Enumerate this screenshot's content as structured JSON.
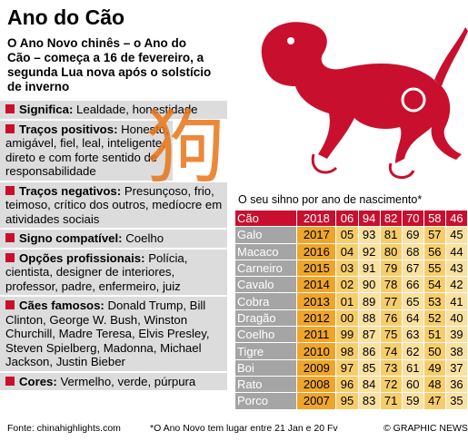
{
  "header": {
    "title": "Ano do Cão",
    "subtitle": "O Ano Novo chinês – o Ano do Cão – começa a 16 de fevereiro, a segunda Lua nova após o solstício de inverno",
    "character": "狗"
  },
  "sections": [
    {
      "label": "Significa:",
      "text": "Lealdade, honestidade"
    },
    {
      "label": "Traços positivos:",
      "text": "Honesto, amigável, fiel, leal, inteligente, direto e com forte sentido de responsabilidade"
    },
    {
      "label": "Traços negativos:",
      "text": "Presunçoso, frio, teimoso, crítico dos outros, medíocre em atividades sociais"
    },
    {
      "label": "Signo compatível:",
      "text": "Coelho"
    },
    {
      "label": "Opções profissionais:",
      "text": "Polícia, cientista, designer de interiores, professor, padre, enfermeiro, juiz"
    },
    {
      "label": "Cães famosos:",
      "text": "Donald Trump, Bill Clinton, George W. Bush, Winston Churchill, Madre Teresa, Elvis Presley, Steven Spielberg, Madonna, Michael Jackson, Justin Bieber"
    },
    {
      "label": "Cores:",
      "text": "Vermelho, verde, púrpura"
    }
  ],
  "table": {
    "title": "O seu sihno por ano de nascimento*",
    "header": [
      "Cão",
      "2018",
      "06",
      "94",
      "82",
      "70",
      "58",
      "46"
    ],
    "rows": [
      [
        "Galo",
        "2017",
        "05",
        "93",
        "81",
        "69",
        "57",
        "45"
      ],
      [
        "Macaco",
        "2016",
        "04",
        "92",
        "80",
        "68",
        "56",
        "44"
      ],
      [
        "Carneiro",
        "2015",
        "03",
        "91",
        "79",
        "67",
        "55",
        "43"
      ],
      [
        "Cavalo",
        "2014",
        "02",
        "90",
        "78",
        "66",
        "54",
        "42"
      ],
      [
        "Cobra",
        "2013",
        "01",
        "89",
        "77",
        "65",
        "53",
        "41"
      ],
      [
        "Dragão",
        "2012",
        "00",
        "88",
        "76",
        "64",
        "52",
        "40"
      ],
      [
        "Coelho",
        "2011",
        "99",
        "87",
        "75",
        "63",
        "51",
        "39"
      ],
      [
        "Tigre",
        "2010",
        "98",
        "86",
        "74",
        "62",
        "50",
        "38"
      ],
      [
        "Boi",
        "2009",
        "97",
        "85",
        "73",
        "61",
        "49",
        "37"
      ],
      [
        "Rato",
        "2008",
        "96",
        "84",
        "72",
        "60",
        "48",
        "36"
      ],
      [
        "Porco",
        "2007",
        "95",
        "83",
        "71",
        "59",
        "47",
        "35"
      ]
    ]
  },
  "footer": {
    "source": "Fonte: chinahighlights.com",
    "note": "*O Ano Novo tem lugar entre 21 Jan e 20 Fv",
    "credit": "© GRAPHIC NEWS"
  }
}
